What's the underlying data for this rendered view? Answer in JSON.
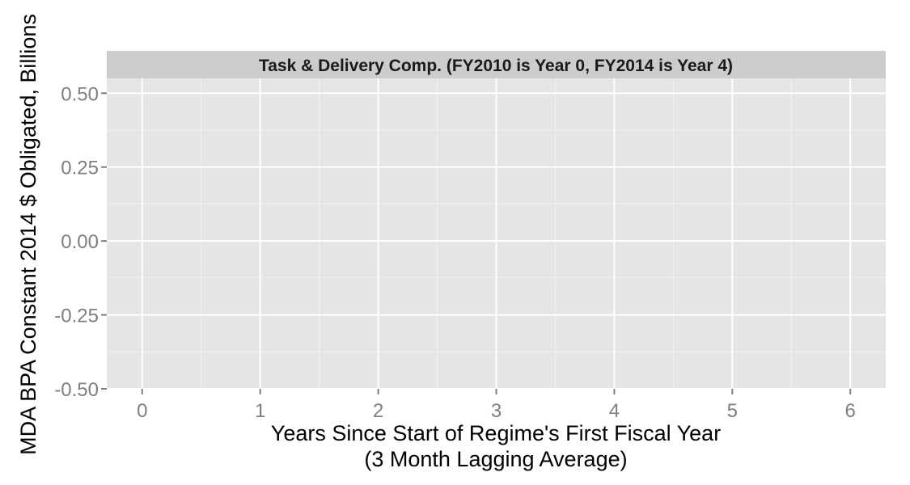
{
  "chart_data": {
    "type": "line",
    "panel_title": "Task & Delivery Comp. (FY2010 is Year 0, FY2014 is Year 4)",
    "xlabel_line1": "Years Since Start of Regime's First Fiscal Year",
    "xlabel_line2": "(3 Month Lagging Average)",
    "ylabel": "MDA BPA Constant 2014 $ Obligated, Billions",
    "x_ticks": [
      0,
      1,
      2,
      3,
      4,
      5,
      6
    ],
    "y_ticks": [
      -0.5,
      -0.25,
      0,
      0.25,
      0.5
    ],
    "y_tick_labels": [
      "-0.50",
      "-0.25",
      "0.00",
      "0.25",
      "0.50"
    ],
    "xlim": [
      -0.3,
      6.3
    ],
    "ylim": [
      -0.5,
      0.55
    ],
    "grid": true,
    "series": []
  },
  "colors": {
    "panel_background": "#e5e5e5",
    "strip_background": "#cccccc",
    "grid_major": "#ffffff",
    "grid_minor": "#f2f2f2",
    "tick_text": "#7f7f7f"
  }
}
